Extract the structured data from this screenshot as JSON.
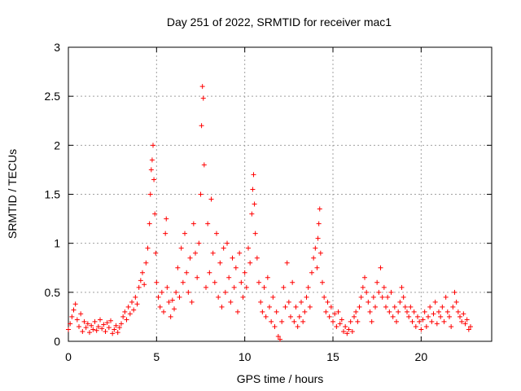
{
  "colors": {
    "series": "#ff0000",
    "grid": "#a0a0a0",
    "axis": "#000000",
    "background": "#ffffff"
  },
  "chart_data": {
    "type": "scatter",
    "title": "Day 251 of 2022, SRMTID for receiver mac1",
    "xlabel": "GPS time / hours",
    "ylabel": "SRMTID / TECUs",
    "xlim": [
      0,
      24
    ],
    "ylim": [
      0,
      3
    ],
    "xticks": [
      0,
      5,
      10,
      15,
      20
    ],
    "yticks": [
      0,
      0.5,
      1,
      1.5,
      2,
      2.5,
      3
    ],
    "xtick_labels": [
      "0",
      "5",
      "10",
      "15",
      "20"
    ],
    "ytick_labels": [
      "0",
      "0.5",
      "1",
      "1.5",
      "2",
      "2.5",
      "3"
    ],
    "grid": true,
    "marker": "+",
    "series": [
      {
        "name": "SRMTID",
        "points": [
          [
            0.0,
            0.12
          ],
          [
            0.1,
            0.18
          ],
          [
            0.2,
            0.25
          ],
          [
            0.3,
            0.32
          ],
          [
            0.4,
            0.38
          ],
          [
            0.5,
            0.22
          ],
          [
            0.6,
            0.15
          ],
          [
            0.7,
            0.28
          ],
          [
            0.8,
            0.1
          ],
          [
            0.9,
            0.2
          ],
          [
            1.0,
            0.14
          ],
          [
            1.1,
            0.18
          ],
          [
            1.2,
            0.09
          ],
          [
            1.3,
            0.16
          ],
          [
            1.4,
            0.12
          ],
          [
            1.5,
            0.2
          ],
          [
            1.6,
            0.11
          ],
          [
            1.7,
            0.15
          ],
          [
            1.8,
            0.22
          ],
          [
            1.9,
            0.13
          ],
          [
            2.0,
            0.17
          ],
          [
            2.1,
            0.1
          ],
          [
            2.2,
            0.19
          ],
          [
            2.3,
            0.14
          ],
          [
            2.4,
            0.21
          ],
          [
            2.5,
            0.08
          ],
          [
            2.6,
            0.12
          ],
          [
            2.7,
            0.16
          ],
          [
            2.8,
            0.09
          ],
          [
            2.9,
            0.14
          ],
          [
            3.0,
            0.18
          ],
          [
            3.1,
            0.25
          ],
          [
            3.2,
            0.3
          ],
          [
            3.3,
            0.22
          ],
          [
            3.4,
            0.35
          ],
          [
            3.5,
            0.28
          ],
          [
            3.6,
            0.4
          ],
          [
            3.7,
            0.32
          ],
          [
            3.8,
            0.45
          ],
          [
            3.9,
            0.38
          ],
          [
            4.0,
            0.55
          ],
          [
            4.1,
            0.62
          ],
          [
            4.2,
            0.7
          ],
          [
            4.3,
            0.58
          ],
          [
            4.4,
            0.8
          ],
          [
            4.5,
            0.95
          ],
          [
            4.6,
            1.2
          ],
          [
            4.65,
            1.5
          ],
          [
            4.7,
            1.75
          ],
          [
            4.75,
            1.85
          ],
          [
            4.8,
            2.0
          ],
          [
            4.85,
            1.65
          ],
          [
            4.9,
            1.3
          ],
          [
            4.95,
            0.9
          ],
          [
            5.0,
            0.6
          ],
          [
            5.1,
            0.45
          ],
          [
            5.2,
            0.35
          ],
          [
            5.3,
            0.5
          ],
          [
            5.4,
            0.3
          ],
          [
            5.5,
            1.1
          ],
          [
            5.55,
            1.25
          ],
          [
            5.6,
            0.55
          ],
          [
            5.7,
            0.4
          ],
          [
            5.8,
            0.25
          ],
          [
            5.9,
            0.42
          ],
          [
            6.0,
            0.33
          ],
          [
            6.1,
            0.5
          ],
          [
            6.2,
            0.75
          ],
          [
            6.3,
            0.45
          ],
          [
            6.4,
            0.95
          ],
          [
            6.5,
            0.6
          ],
          [
            6.6,
            1.1
          ],
          [
            6.7,
            0.7
          ],
          [
            6.8,
            0.5
          ],
          [
            6.9,
            0.85
          ],
          [
            7.0,
            0.4
          ],
          [
            7.1,
            1.2
          ],
          [
            7.2,
            0.9
          ],
          [
            7.3,
            0.65
          ],
          [
            7.4,
            1.0
          ],
          [
            7.5,
            1.5
          ],
          [
            7.55,
            2.2
          ],
          [
            7.6,
            2.6
          ],
          [
            7.65,
            2.48
          ],
          [
            7.7,
            1.8
          ],
          [
            7.8,
            0.55
          ],
          [
            7.9,
            1.2
          ],
          [
            8.0,
            0.7
          ],
          [
            8.1,
            1.45
          ],
          [
            8.2,
            0.9
          ],
          [
            8.3,
            0.6
          ],
          [
            8.4,
            1.1
          ],
          [
            8.5,
            0.45
          ],
          [
            8.6,
            0.8
          ],
          [
            8.7,
            0.35
          ],
          [
            8.8,
            0.95
          ],
          [
            8.9,
            0.5
          ],
          [
            9.0,
            1.0
          ],
          [
            9.1,
            0.65
          ],
          [
            9.2,
            0.4
          ],
          [
            9.3,
            0.85
          ],
          [
            9.4,
            0.55
          ],
          [
            9.5,
            0.75
          ],
          [
            9.6,
            0.3
          ],
          [
            9.7,
            0.9
          ],
          [
            9.8,
            0.6
          ],
          [
            9.9,
            0.45
          ],
          [
            10.0,
            0.7
          ],
          [
            10.1,
            0.55
          ],
          [
            10.2,
            0.95
          ],
          [
            10.3,
            0.8
          ],
          [
            10.4,
            1.3
          ],
          [
            10.45,
            1.55
          ],
          [
            10.5,
            1.7
          ],
          [
            10.55,
            1.4
          ],
          [
            10.6,
            1.1
          ],
          [
            10.7,
            0.85
          ],
          [
            10.8,
            0.6
          ],
          [
            10.9,
            0.4
          ],
          [
            11.0,
            0.3
          ],
          [
            11.1,
            0.55
          ],
          [
            11.2,
            0.25
          ],
          [
            11.3,
            0.65
          ],
          [
            11.4,
            0.35
          ],
          [
            11.5,
            0.2
          ],
          [
            11.6,
            0.45
          ],
          [
            11.7,
            0.15
          ],
          [
            11.8,
            0.3
          ],
          [
            11.9,
            0.05
          ],
          [
            12.0,
            0.02
          ],
          [
            12.1,
            0.2
          ],
          [
            12.2,
            0.55
          ],
          [
            12.3,
            0.35
          ],
          [
            12.4,
            0.8
          ],
          [
            12.5,
            0.4
          ],
          [
            12.6,
            0.25
          ],
          [
            12.7,
            0.6
          ],
          [
            12.8,
            0.2
          ],
          [
            12.9,
            0.35
          ],
          [
            13.0,
            0.15
          ],
          [
            13.1,
            0.25
          ],
          [
            13.2,
            0.4
          ],
          [
            13.3,
            0.2
          ],
          [
            13.4,
            0.3
          ],
          [
            13.5,
            0.45
          ],
          [
            13.6,
            0.55
          ],
          [
            13.7,
            0.35
          ],
          [
            13.8,
            0.7
          ],
          [
            13.9,
            0.85
          ],
          [
            14.0,
            0.95
          ],
          [
            14.1,
            0.75
          ],
          [
            14.15,
            1.05
          ],
          [
            14.2,
            1.2
          ],
          [
            14.25,
            1.35
          ],
          [
            14.3,
            0.9
          ],
          [
            14.4,
            0.6
          ],
          [
            14.5,
            0.45
          ],
          [
            14.6,
            0.3
          ],
          [
            14.7,
            0.4
          ],
          [
            14.8,
            0.25
          ],
          [
            14.9,
            0.35
          ],
          [
            15.0,
            0.2
          ],
          [
            15.1,
            0.28
          ],
          [
            15.2,
            0.15
          ],
          [
            15.3,
            0.3
          ],
          [
            15.4,
            0.18
          ],
          [
            15.5,
            0.22
          ],
          [
            15.6,
            0.1
          ],
          [
            15.7,
            0.15
          ],
          [
            15.8,
            0.08
          ],
          [
            15.9,
            0.12
          ],
          [
            16.0,
            0.2
          ],
          [
            16.1,
            0.1
          ],
          [
            16.2,
            0.25
          ],
          [
            16.3,
            0.3
          ],
          [
            16.4,
            0.2
          ],
          [
            16.5,
            0.35
          ],
          [
            16.6,
            0.45
          ],
          [
            16.7,
            0.55
          ],
          [
            16.8,
            0.65
          ],
          [
            16.9,
            0.5
          ],
          [
            17.0,
            0.4
          ],
          [
            17.1,
            0.3
          ],
          [
            17.2,
            0.2
          ],
          [
            17.3,
            0.45
          ],
          [
            17.4,
            0.35
          ],
          [
            17.5,
            0.6
          ],
          [
            17.6,
            0.5
          ],
          [
            17.7,
            0.75
          ],
          [
            17.8,
            0.45
          ],
          [
            17.9,
            0.55
          ],
          [
            18.0,
            0.35
          ],
          [
            18.1,
            0.45
          ],
          [
            18.2,
            0.3
          ],
          [
            18.3,
            0.5
          ],
          [
            18.4,
            0.25
          ],
          [
            18.5,
            0.35
          ],
          [
            18.6,
            0.2
          ],
          [
            18.7,
            0.3
          ],
          [
            18.8,
            0.4
          ],
          [
            18.9,
            0.55
          ],
          [
            19.0,
            0.45
          ],
          [
            19.1,
            0.35
          ],
          [
            19.2,
            0.3
          ],
          [
            19.3,
            0.25
          ],
          [
            19.4,
            0.35
          ],
          [
            19.5,
            0.2
          ],
          [
            19.6,
            0.3
          ],
          [
            19.7,
            0.15
          ],
          [
            19.8,
            0.25
          ],
          [
            19.9,
            0.2
          ],
          [
            20.0,
            0.12
          ],
          [
            20.1,
            0.22
          ],
          [
            20.2,
            0.3
          ],
          [
            20.3,
            0.15
          ],
          [
            20.4,
            0.25
          ],
          [
            20.5,
            0.35
          ],
          [
            20.6,
            0.2
          ],
          [
            20.7,
            0.28
          ],
          [
            20.8,
            0.4
          ],
          [
            20.9,
            0.18
          ],
          [
            21.0,
            0.3
          ],
          [
            21.1,
            0.25
          ],
          [
            21.2,
            0.35
          ],
          [
            21.3,
            0.2
          ],
          [
            21.4,
            0.45
          ],
          [
            21.5,
            0.3
          ],
          [
            21.6,
            0.25
          ],
          [
            21.7,
            0.15
          ],
          [
            21.8,
            0.35
          ],
          [
            21.9,
            0.5
          ],
          [
            22.0,
            0.4
          ],
          [
            22.1,
            0.3
          ],
          [
            22.2,
            0.25
          ],
          [
            22.3,
            0.2
          ],
          [
            22.4,
            0.28
          ],
          [
            22.5,
            0.18
          ],
          [
            22.6,
            0.22
          ],
          [
            22.7,
            0.12
          ],
          [
            22.8,
            0.15
          ]
        ]
      }
    ]
  }
}
